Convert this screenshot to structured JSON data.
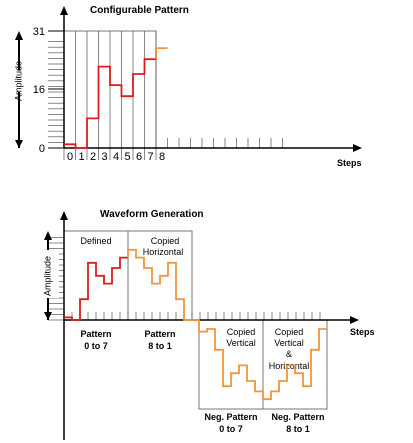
{
  "colors": {
    "red": "#d81e1e",
    "orange": "#f0963c",
    "axis": "#000000",
    "grid": "#555555",
    "box": "#777777"
  },
  "top_chart": {
    "title": "Configurable Pattern",
    "ylabel": "Amplitude",
    "xlabel": "Steps",
    "y_ticks": [
      "31",
      "16",
      "0"
    ],
    "x_ticks": [
      "0",
      "1",
      "2",
      "3",
      "4",
      "5",
      "6",
      "7",
      "8"
    ],
    "red_values": [
      1,
      0,
      8,
      22,
      17,
      14,
      20,
      24
    ],
    "orange_values": [
      27
    ]
  },
  "bottom_chart": {
    "title": "Waveform Generation",
    "ylabel": "Amplitude",
    "xlabel": "Steps",
    "section_labels": {
      "defined": "Defined",
      "copied_horizontal": "Copied Horizontal",
      "copied_vertical": "Copied Vertical",
      "copied_vertical_horizontal": "Copied Vertical & Horizontal"
    },
    "pattern_labels": {
      "p1": "Pattern 0 to 7",
      "p2": "Pattern 8 to 1",
      "p3": "Neg. Pattern 0 to 7",
      "p4": "Neg. Pattern 8 to 1"
    },
    "pattern_values": [
      1,
      0,
      8,
      22,
      17,
      14,
      20,
      24,
      27
    ]
  }
}
